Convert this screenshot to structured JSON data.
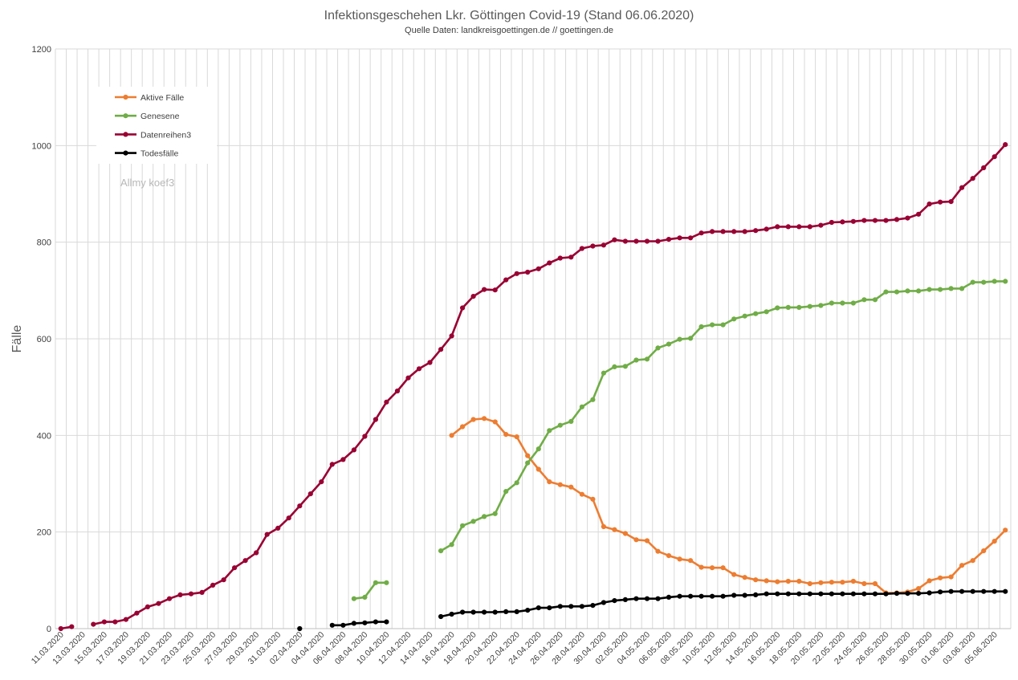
{
  "chart_data": {
    "type": "line",
    "title": "Infektionsgeschehen Lkr. Göttingen Covid-19 (Stand 06.06.2020)",
    "subtitle": "Quelle Daten: landkreisgoettingen.de // goettingen.de",
    "ylabel": "Fälle",
    "xlabel": "",
    "ylim": [
      0,
      1200
    ],
    "yticks": [
      0,
      200,
      400,
      600,
      800,
      1000,
      1200
    ],
    "grid": true,
    "legend_position": "top-left",
    "watermark": "Allmy koef3",
    "x_start": "11.03.2020",
    "x_end": "06.06.2020",
    "x_tick_labels": [
      "11.03.2020",
      "13.03.2020",
      "15.03.2020",
      "17.03.2020",
      "19.03.2020",
      "21.03.2020",
      "23.03.2020",
      "25.03.2020",
      "27.03.2020",
      "29.03.2020",
      "31.03.2020",
      "02.04.2020",
      "04.04.2020",
      "06.04.2020",
      "08.04.2020",
      "10.04.2020",
      "12.04.2020",
      "14.04.2020",
      "16.04.2020",
      "18.04.2020",
      "20.04.2020",
      "22.04.2020",
      "24.04.2020",
      "26.04.2020",
      "28.04.2020",
      "30.04.2020",
      "02.05.2020",
      "04.05.2020",
      "06.05.2020",
      "08.05.2020",
      "10.05.2020",
      "12.05.2020",
      "14.05.2020",
      "16.05.2020",
      "18.05.2020",
      "20.05.2020",
      "22.05.2020",
      "24.05.2020",
      "26.05.2020",
      "28.05.2020",
      "30.05.2020",
      "01.06.2020",
      "03.06.2020",
      "05.06.2020"
    ],
    "series": [
      {
        "name": "Aktive Fälle",
        "color": "#ED7D31",
        "points": [
          [
            "16.04.2020",
            400
          ],
          [
            "17.04.2020",
            418
          ],
          [
            "18.04.2020",
            433
          ],
          [
            "19.04.2020",
            435
          ],
          [
            "20.04.2020",
            428
          ],
          [
            "21.04.2020",
            402
          ],
          [
            "22.04.2020",
            397
          ],
          [
            "23.04.2020",
            358
          ],
          [
            "24.04.2020",
            330
          ],
          [
            "25.04.2020",
            304
          ],
          [
            "26.04.2020",
            298
          ],
          [
            "27.04.2020",
            293
          ],
          [
            "28.04.2020",
            278
          ],
          [
            "29.04.2020",
            268
          ],
          [
            "30.04.2020",
            211
          ],
          [
            "01.05.2020",
            205
          ],
          [
            "02.05.2020",
            197
          ],
          [
            "03.05.2020",
            184
          ],
          [
            "04.05.2020",
            182
          ],
          [
            "05.05.2020",
            160
          ],
          [
            "06.05.2020",
            151
          ],
          [
            "07.05.2020",
            144
          ],
          [
            "08.05.2020",
            141
          ],
          [
            "09.05.2020",
            127
          ],
          [
            "10.05.2020",
            126
          ],
          [
            "11.05.2020",
            126
          ],
          [
            "12.05.2020",
            112
          ],
          [
            "13.05.2020",
            106
          ],
          [
            "14.05.2020",
            101
          ],
          [
            "15.05.2020",
            99
          ],
          [
            "16.05.2020",
            97
          ],
          [
            "17.05.2020",
            98
          ],
          [
            "18.05.2020",
            98
          ],
          [
            "19.05.2020",
            93
          ],
          [
            "20.05.2020",
            95
          ],
          [
            "21.05.2020",
            96
          ],
          [
            "22.05.2020",
            96
          ],
          [
            "23.05.2020",
            98
          ],
          [
            "24.05.2020",
            93
          ],
          [
            "25.05.2020",
            93
          ],
          [
            "26.05.2020",
            74
          ],
          [
            "27.05.2020",
            74
          ],
          [
            "28.05.2020",
            76
          ],
          [
            "29.05.2020",
            83
          ],
          [
            "30.05.2020",
            99
          ],
          [
            "31.05.2020",
            105
          ],
          [
            "01.06.2020",
            107
          ],
          [
            "02.06.2020",
            131
          ],
          [
            "03.06.2020",
            141
          ],
          [
            "04.06.2020",
            161
          ],
          [
            "05.06.2020",
            181
          ],
          [
            "06.06.2020",
            204
          ]
        ]
      },
      {
        "name": "Genesene",
        "color": "#70AD47",
        "points": [
          [
            "07.04.2020",
            62
          ],
          [
            "08.04.2020",
            65
          ],
          [
            "09.04.2020",
            95
          ],
          [
            "10.04.2020",
            95
          ],
          [
            "15.04.2020",
            161
          ],
          [
            "16.04.2020",
            174
          ],
          [
            "17.04.2020",
            213
          ],
          [
            "18.04.2020",
            222
          ],
          [
            "19.04.2020",
            232
          ],
          [
            "20.04.2020",
            238
          ],
          [
            "21.04.2020",
            284
          ],
          [
            "22.04.2020",
            302
          ],
          [
            "23.04.2020",
            343
          ],
          [
            "24.04.2020",
            372
          ],
          [
            "25.04.2020",
            410
          ],
          [
            "26.04.2020",
            421
          ],
          [
            "27.04.2020",
            429
          ],
          [
            "28.04.2020",
            459
          ],
          [
            "29.04.2020",
            474
          ],
          [
            "30.04.2020",
            529
          ],
          [
            "01.05.2020",
            542
          ],
          [
            "02.05.2020",
            543
          ],
          [
            "03.05.2020",
            556
          ],
          [
            "04.05.2020",
            558
          ],
          [
            "05.05.2020",
            581
          ],
          [
            "06.05.2020",
            589
          ],
          [
            "07.05.2020",
            599
          ],
          [
            "08.05.2020",
            601
          ],
          [
            "09.05.2020",
            625
          ],
          [
            "10.05.2020",
            629
          ],
          [
            "11.05.2020",
            629
          ],
          [
            "12.05.2020",
            641
          ],
          [
            "13.05.2020",
            647
          ],
          [
            "14.05.2020",
            652
          ],
          [
            "15.05.2020",
            656
          ],
          [
            "16.05.2020",
            664
          ],
          [
            "17.05.2020",
            665
          ],
          [
            "18.05.2020",
            665
          ],
          [
            "19.05.2020",
            667
          ],
          [
            "20.05.2020",
            669
          ],
          [
            "21.05.2020",
            674
          ],
          [
            "22.05.2020",
            674
          ],
          [
            "23.05.2020",
            674
          ],
          [
            "24.05.2020",
            681
          ],
          [
            "25.05.2020",
            681
          ],
          [
            "26.05.2020",
            697
          ],
          [
            "27.05.2020",
            697
          ],
          [
            "28.05.2020",
            699
          ],
          [
            "29.05.2020",
            699
          ],
          [
            "30.05.2020",
            702
          ],
          [
            "31.05.2020",
            702
          ],
          [
            "01.06.2020",
            704
          ],
          [
            "02.06.2020",
            704
          ],
          [
            "03.06.2020",
            717
          ],
          [
            "04.06.2020",
            717
          ],
          [
            "05.06.2020",
            719
          ],
          [
            "06.06.2020",
            719
          ]
        ]
      },
      {
        "name": "Datenreihen3",
        "color": "#990033",
        "points": [
          [
            "11.03.2020",
            0
          ],
          [
            "12.03.2020",
            4
          ],
          [
            "14.03.2020",
            9
          ],
          [
            "15.03.2020",
            14
          ],
          [
            "16.03.2020",
            14
          ],
          [
            "17.03.2020",
            19
          ],
          [
            "18.03.2020",
            32
          ],
          [
            "19.03.2020",
            45
          ],
          [
            "20.03.2020",
            52
          ],
          [
            "21.03.2020",
            62
          ],
          [
            "22.03.2020",
            70
          ],
          [
            "23.03.2020",
            72
          ],
          [
            "24.03.2020",
            75
          ],
          [
            "25.03.2020",
            90
          ],
          [
            "26.03.2020",
            101
          ],
          [
            "27.03.2020",
            126
          ],
          [
            "28.03.2020",
            141
          ],
          [
            "29.03.2020",
            157
          ],
          [
            "30.03.2020",
            195
          ],
          [
            "31.03.2020",
            208
          ],
          [
            "01.04.2020",
            229
          ],
          [
            "02.04.2020",
            254
          ],
          [
            "03.04.2020",
            279
          ],
          [
            "04.04.2020",
            304
          ],
          [
            "05.04.2020",
            340
          ],
          [
            "06.04.2020",
            350
          ],
          [
            "07.04.2020",
            370
          ],
          [
            "08.04.2020",
            398
          ],
          [
            "09.04.2020",
            433
          ],
          [
            "10.04.2020",
            469
          ],
          [
            "11.04.2020",
            492
          ],
          [
            "12.04.2020",
            519
          ],
          [
            "13.04.2020",
            538
          ],
          [
            "14.04.2020",
            551
          ],
          [
            "15.04.2020",
            578
          ],
          [
            "16.04.2020",
            606
          ],
          [
            "17.04.2020",
            664
          ],
          [
            "18.04.2020",
            688
          ],
          [
            "19.04.2020",
            702
          ],
          [
            "20.04.2020",
            701
          ],
          [
            "21.04.2020",
            722
          ],
          [
            "22.04.2020",
            735
          ],
          [
            "23.04.2020",
            738
          ],
          [
            "24.04.2020",
            745
          ],
          [
            "25.04.2020",
            757
          ],
          [
            "26.04.2020",
            767
          ],
          [
            "27.04.2020",
            769
          ],
          [
            "28.04.2020",
            787
          ],
          [
            "29.04.2020",
            792
          ],
          [
            "30.04.2020",
            794
          ],
          [
            "01.05.2020",
            805
          ],
          [
            "02.05.2020",
            802
          ],
          [
            "03.05.2020",
            802
          ],
          [
            "04.05.2020",
            802
          ],
          [
            "05.05.2020",
            802
          ],
          [
            "06.05.2020",
            806
          ],
          [
            "07.05.2020",
            809
          ],
          [
            "08.05.2020",
            809
          ],
          [
            "09.05.2020",
            819
          ],
          [
            "10.05.2020",
            822
          ],
          [
            "11.05.2020",
            822
          ],
          [
            "12.05.2020",
            822
          ],
          [
            "13.05.2020",
            822
          ],
          [
            "14.05.2020",
            824
          ],
          [
            "15.05.2020",
            827
          ],
          [
            "16.05.2020",
            832
          ],
          [
            "17.05.2020",
            832
          ],
          [
            "18.05.2020",
            832
          ],
          [
            "19.05.2020",
            832
          ],
          [
            "20.05.2020",
            835
          ],
          [
            "21.05.2020",
            841
          ],
          [
            "22.05.2020",
            842
          ],
          [
            "23.05.2020",
            843
          ],
          [
            "24.05.2020",
            845
          ],
          [
            "25.05.2020",
            845
          ],
          [
            "26.05.2020",
            845
          ],
          [
            "27.05.2020",
            847
          ],
          [
            "28.05.2020",
            850
          ],
          [
            "29.05.2020",
            858
          ],
          [
            "30.05.2020",
            879
          ],
          [
            "31.05.2020",
            883
          ],
          [
            "01.06.2020",
            884
          ],
          [
            "02.06.2020",
            913
          ],
          [
            "03.06.2020",
            932
          ],
          [
            "04.06.2020",
            954
          ],
          [
            "05.06.2020",
            977
          ],
          [
            "06.06.2020",
            1002
          ]
        ]
      },
      {
        "name": "Todesfälle",
        "color": "#000000",
        "points": [
          [
            "02.04.2020",
            0
          ],
          [
            "05.04.2020",
            7
          ],
          [
            "06.04.2020",
            7
          ],
          [
            "07.04.2020",
            11
          ],
          [
            "08.04.2020",
            12
          ],
          [
            "09.04.2020",
            14
          ],
          [
            "10.04.2020",
            14
          ],
          [
            "15.04.2020",
            25
          ],
          [
            "16.04.2020",
            30
          ],
          [
            "17.04.2020",
            34
          ],
          [
            "18.04.2020",
            34
          ],
          [
            "19.04.2020",
            34
          ],
          [
            "20.04.2020",
            34
          ],
          [
            "21.04.2020",
            35
          ],
          [
            "22.04.2020",
            35
          ],
          [
            "23.04.2020",
            38
          ],
          [
            "24.04.2020",
            43
          ],
          [
            "25.04.2020",
            43
          ],
          [
            "26.04.2020",
            46
          ],
          [
            "27.04.2020",
            46
          ],
          [
            "28.04.2020",
            46
          ],
          [
            "29.04.2020",
            48
          ],
          [
            "30.04.2020",
            54
          ],
          [
            "01.05.2020",
            58
          ],
          [
            "02.05.2020",
            60
          ],
          [
            "03.05.2020",
            62
          ],
          [
            "04.05.2020",
            62
          ],
          [
            "05.05.2020",
            62
          ],
          [
            "06.05.2020",
            65
          ],
          [
            "07.05.2020",
            67
          ],
          [
            "08.05.2020",
            67
          ],
          [
            "09.05.2020",
            67
          ],
          [
            "10.05.2020",
            67
          ],
          [
            "11.05.2020",
            67
          ],
          [
            "12.05.2020",
            69
          ],
          [
            "13.05.2020",
            69
          ],
          [
            "14.05.2020",
            70
          ],
          [
            "15.05.2020",
            72
          ],
          [
            "16.05.2020",
            72
          ],
          [
            "17.05.2020",
            72
          ],
          [
            "18.05.2020",
            72
          ],
          [
            "19.05.2020",
            72
          ],
          [
            "20.05.2020",
            72
          ],
          [
            "21.05.2020",
            72
          ],
          [
            "22.05.2020",
            72
          ],
          [
            "23.05.2020",
            72
          ],
          [
            "24.05.2020",
            72
          ],
          [
            "25.05.2020",
            72
          ],
          [
            "26.05.2020",
            72
          ],
          [
            "27.05.2020",
            73
          ],
          [
            "28.05.2020",
            73
          ],
          [
            "29.05.2020",
            73
          ],
          [
            "30.05.2020",
            74
          ],
          [
            "31.05.2020",
            76
          ],
          [
            "01.06.2020",
            77
          ],
          [
            "02.06.2020",
            77
          ],
          [
            "03.06.2020",
            77
          ],
          [
            "04.06.2020",
            77
          ],
          [
            "05.06.2020",
            77
          ],
          [
            "06.06.2020",
            77
          ]
        ]
      }
    ]
  }
}
